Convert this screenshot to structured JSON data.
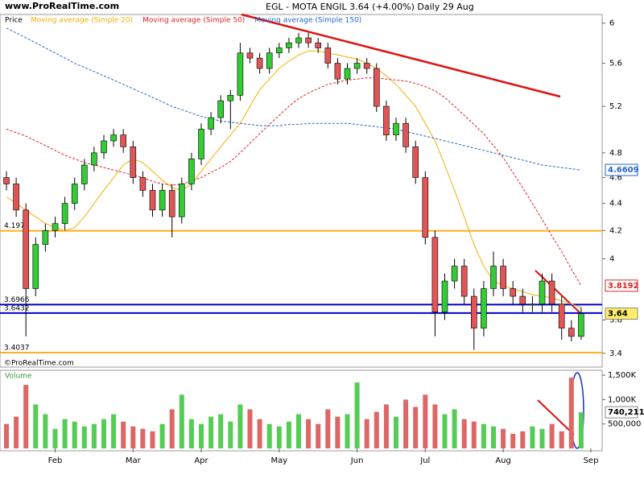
{
  "chart_data": {
    "type": "candlestick",
    "title": "EGL - MOTA ENGIL    3.64 (+4.00%)    Daily  29 Aug",
    "site": "www.ProRealTime.com",
    "copyright": "©ProRealTime.com",
    "price_label": "Price",
    "log_scale": true,
    "up_color": "#33cc33",
    "down_color": "#e05555",
    "categories": [
      null,
      null,
      null,
      null,
      null,
      "Feb",
      null,
      null,
      null,
      null,
      null,
      null,
      null,
      "Mar",
      null,
      null,
      null,
      null,
      null,
      null,
      "Apr",
      null,
      null,
      null,
      null,
      null,
      null,
      null,
      "May",
      null,
      null,
      null,
      null,
      null,
      null,
      null,
      "Jun",
      null,
      null,
      null,
      null,
      null,
      null,
      "Jul",
      null,
      null,
      null,
      null,
      null,
      null,
      null,
      "Aug",
      null,
      null,
      null,
      null,
      null,
      null,
      null,
      null,
      "Sep"
    ],
    "open": [
      4.6,
      4.55,
      4.35,
      3.8,
      4.1,
      4.2,
      4.25,
      4.4,
      4.55,
      4.7,
      4.8,
      4.9,
      4.95,
      4.85,
      4.6,
      4.5,
      4.35,
      4.5,
      4.3,
      4.55,
      4.75,
      5.0,
      5.1,
      5.25,
      5.3,
      5.7,
      5.65,
      5.55,
      5.7,
      5.75,
      5.8,
      5.85,
      5.8,
      5.75,
      5.6,
      5.45,
      5.55,
      5.6,
      5.55,
      5.2,
      4.95,
      5.05,
      4.85,
      4.6,
      4.15,
      3.65,
      3.85,
      3.95,
      3.75,
      3.55,
      3.8,
      3.95,
      3.8,
      3.75,
      3.7,
      3.7,
      3.85,
      3.7,
      3.55,
      3.5,
      null
    ],
    "high": [
      4.65,
      4.6,
      4.4,
      4.15,
      4.25,
      4.3,
      4.45,
      4.6,
      4.75,
      4.85,
      4.95,
      5.0,
      5.0,
      4.9,
      4.65,
      4.55,
      4.55,
      4.55,
      4.6,
      4.8,
      5.05,
      5.15,
      5.3,
      5.35,
      5.8,
      5.75,
      5.7,
      5.75,
      5.8,
      5.85,
      5.9,
      5.9,
      5.85,
      5.8,
      5.65,
      5.6,
      5.65,
      5.65,
      5.6,
      5.25,
      5.1,
      5.1,
      4.9,
      4.65,
      4.2,
      3.9,
      4.0,
      4.0,
      3.8,
      3.85,
      4.05,
      4.0,
      3.85,
      3.8,
      3.75,
      3.9,
      3.9,
      3.75,
      3.6,
      3.68,
      null
    ],
    "low": [
      4.5,
      4.3,
      3.5,
      3.75,
      4.05,
      4.15,
      4.2,
      4.35,
      4.5,
      4.65,
      4.75,
      4.85,
      4.8,
      4.55,
      4.45,
      4.3,
      4.3,
      4.15,
      4.25,
      4.5,
      4.7,
      4.95,
      5.05,
      5.0,
      5.25,
      5.6,
      5.5,
      5.5,
      5.65,
      5.7,
      5.75,
      5.75,
      5.7,
      5.55,
      5.4,
      5.4,
      5.5,
      5.5,
      5.15,
      4.9,
      4.9,
      4.8,
      4.55,
      4.1,
      3.5,
      3.6,
      3.8,
      3.7,
      3.42,
      3.5,
      3.75,
      3.75,
      3.7,
      3.65,
      3.65,
      3.65,
      3.65,
      3.48,
      3.47,
      3.48,
      null
    ],
    "close": [
      4.55,
      4.35,
      3.8,
      4.1,
      4.2,
      4.25,
      4.4,
      4.55,
      4.7,
      4.8,
      4.9,
      4.95,
      4.85,
      4.6,
      4.5,
      4.35,
      4.5,
      4.3,
      4.55,
      4.75,
      5.0,
      5.1,
      5.25,
      5.3,
      5.7,
      5.65,
      5.55,
      5.7,
      5.75,
      5.8,
      5.85,
      5.8,
      5.75,
      5.6,
      5.45,
      5.55,
      5.6,
      5.55,
      5.2,
      4.95,
      5.05,
      4.85,
      4.6,
      4.15,
      3.65,
      3.85,
      3.95,
      3.75,
      3.55,
      3.8,
      3.95,
      3.8,
      3.75,
      3.7,
      3.7,
      3.85,
      3.7,
      3.55,
      3.5,
      3.64,
      null
    ],
    "ylim": [
      3.32,
      6.09
    ],
    "yticks": [
      3.4,
      3.6,
      4,
      4.2,
      4.4,
      4.6,
      4.8,
      5.2,
      5.6,
      6
    ],
    "series": [
      {
        "name": "Moving average (Simple 20)",
        "color": "#f0b000",
        "dash": false,
        "values": [
          4.45,
          4.4,
          4.35,
          4.3,
          4.25,
          4.22,
          4.2,
          4.22,
          4.3,
          4.4,
          4.5,
          4.6,
          4.7,
          4.75,
          4.72,
          4.65,
          4.58,
          4.52,
          4.5,
          4.55,
          4.65,
          4.75,
          4.85,
          4.95,
          5.05,
          5.2,
          5.35,
          5.45,
          5.55,
          5.62,
          5.68,
          5.72,
          5.72,
          5.7,
          5.68,
          5.66,
          5.64,
          5.6,
          5.55,
          5.48,
          5.4,
          5.3,
          5.2,
          5.05,
          4.9,
          4.7,
          4.5,
          4.3,
          4.1,
          3.95,
          3.85,
          3.82,
          3.8,
          3.78,
          3.76,
          3.75,
          3.74,
          3.72,
          3.7,
          3.68,
          null
        ]
      },
      {
        "name": "Moving average (Simple 50)",
        "color": "#dd2222",
        "dash": true,
        "values": [
          5.0,
          4.97,
          4.94,
          4.9,
          4.86,
          4.82,
          4.78,
          4.75,
          4.72,
          4.7,
          4.68,
          4.66,
          4.64,
          4.62,
          4.6,
          4.57,
          4.55,
          4.54,
          4.55,
          4.57,
          4.6,
          4.64,
          4.68,
          4.73,
          4.8,
          4.88,
          4.96,
          5.04,
          5.12,
          5.2,
          5.27,
          5.32,
          5.36,
          5.4,
          5.42,
          5.44,
          5.45,
          5.46,
          5.46,
          5.45,
          5.44,
          5.43,
          5.41,
          5.38,
          5.34,
          5.28,
          5.2,
          5.12,
          5.04,
          4.96,
          4.86,
          4.76,
          4.64,
          4.52,
          4.4,
          4.28,
          4.16,
          4.05,
          3.93,
          3.8192,
          null
        ]
      },
      {
        "name": "Moving average (Simple 150)",
        "color": "#2266cc",
        "dash": true,
        "values": [
          5.95,
          5.9,
          5.85,
          5.8,
          5.75,
          5.7,
          5.65,
          5.6,
          5.56,
          5.52,
          5.48,
          5.44,
          5.4,
          5.36,
          5.32,
          5.28,
          5.24,
          5.2,
          5.17,
          5.14,
          5.11,
          5.09,
          5.07,
          5.06,
          5.05,
          5.04,
          5.03,
          5.03,
          5.03,
          5.04,
          5.04,
          5.05,
          5.05,
          5.05,
          5.05,
          5.05,
          5.04,
          5.03,
          5.02,
          5.01,
          5.0,
          4.98,
          4.96,
          4.94,
          4.92,
          4.9,
          4.88,
          4.86,
          4.84,
          4.82,
          4.8,
          4.78,
          4.76,
          4.74,
          4.72,
          4.7,
          4.69,
          4.68,
          4.67,
          4.6609,
          null
        ]
      }
    ],
    "hlines": [
      {
        "value": 4.1973,
        "color": "#ffb020"
      },
      {
        "value": 3.6966,
        "color": "#0000cc"
      },
      {
        "value": 3.6432,
        "color": "#0000cc"
      },
      {
        "value": 3.4037,
        "color": "#ffb020"
      }
    ],
    "volume": {
      "name": "Volume",
      "values": [
        500000,
        650000,
        1300000,
        900000,
        700000,
        400000,
        600000,
        550000,
        450000,
        500000,
        600000,
        700000,
        550000,
        450000,
        400000,
        350000,
        500000,
        800000,
        1100000,
        600000,
        500000,
        650000,
        700000,
        550000,
        900000,
        800000,
        600000,
        500000,
        450000,
        550000,
        700000,
        600000,
        500000,
        800000,
        650000,
        700000,
        1350000,
        600000,
        750000,
        900000,
        650000,
        1000000,
        850000,
        1100000,
        900000,
        700000,
        800000,
        600000,
        550000,
        500000,
        450000,
        400000,
        300000,
        350000,
        450000,
        400000,
        500000,
        350000,
        1450000,
        740211,
        null
      ],
      "value_labels": [
        null,
        null,
        null,
        null,
        null,
        null,
        null,
        null,
        null,
        null,
        null,
        null,
        null,
        null,
        null,
        null,
        null,
        null,
        null,
        null,
        null,
        null,
        null,
        null,
        null,
        null,
        null,
        null,
        null,
        null,
        null,
        null,
        null,
        null,
        null,
        null,
        null,
        null,
        null,
        null,
        null,
        null,
        null,
        null,
        null,
        null,
        null,
        null,
        null,
        null,
        null,
        null,
        null,
        null,
        null,
        null,
        null,
        null,
        null,
        "740,211",
        null
      ],
      "ylim": [
        0,
        1600000
      ],
      "yticks": [
        {
          "value": 500000,
          "label": "500,000"
        },
        {
          "value": 1000000,
          "label": "1,000K"
        },
        {
          "value": 1500000,
          "label": "1,500K"
        }
      ]
    }
  }
}
